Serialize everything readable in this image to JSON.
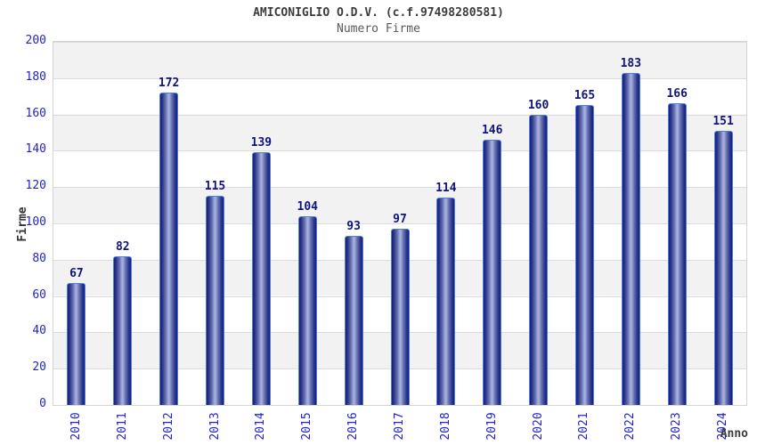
{
  "chart_data": {
    "type": "bar",
    "title": "AMICONIGLIO O.D.V. (c.f.97498280581)",
    "subtitle": "Numero Firme",
    "xlabel": "Anno",
    "ylabel": "Firme",
    "categories": [
      "2010",
      "2011",
      "2012",
      "2013",
      "2014",
      "2015",
      "2016",
      "2017",
      "2018",
      "2019",
      "2020",
      "2021",
      "2022",
      "2023",
      "2024"
    ],
    "values": [
      67,
      82,
      172,
      115,
      139,
      104,
      93,
      97,
      114,
      146,
      160,
      165,
      183,
      166,
      151
    ],
    "ylim": [
      0,
      200
    ],
    "yticks": [
      0,
      20,
      40,
      60,
      80,
      100,
      120,
      140,
      160,
      180,
      200
    ],
    "grid": true,
    "legend": "none",
    "value_labels": "above-bars",
    "colors": {
      "bar_edge": "#4d7fe0",
      "bar_dark": "#161d7c",
      "bar_light": "#aab4de",
      "tick_label": "#2323cb",
      "value_label": "#10147e",
      "title": "#3c3c3c",
      "subtitle": "#5a5a5a",
      "band_stripe": "#f2f2f2",
      "gridline": "#dcdcdc",
      "plot_border": "#d4d4d4"
    }
  }
}
